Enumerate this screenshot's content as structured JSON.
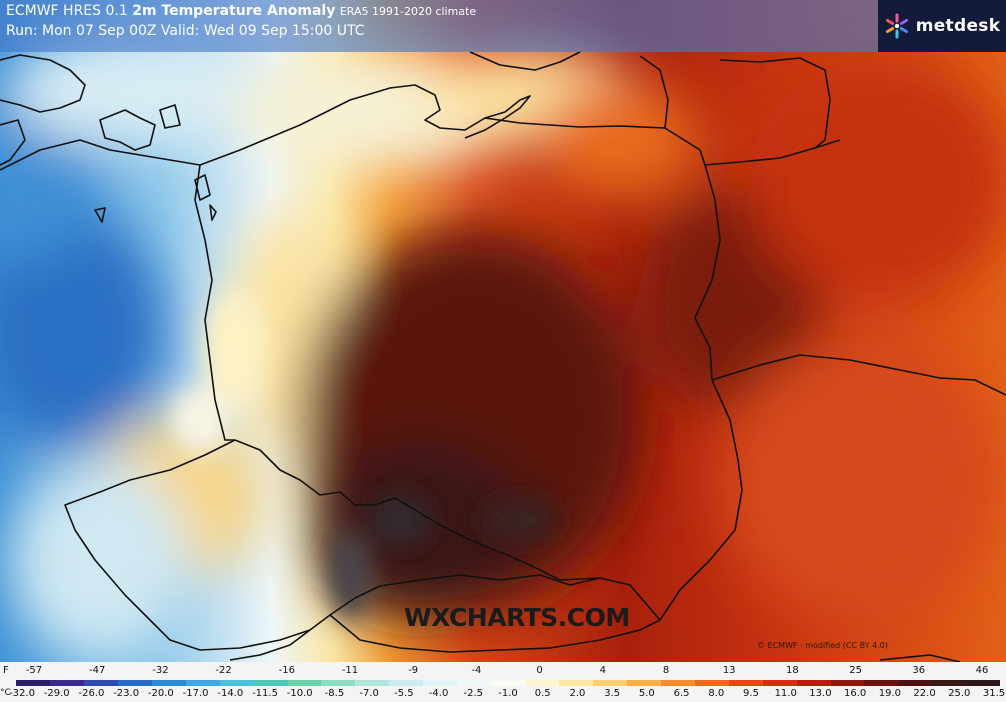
{
  "header": {
    "model": "ECMWF HRES 0.1",
    "product": "2m Temperature Anomaly",
    "climate": "ERA5 1991-2020 climate",
    "run": "Run: Mon 07 Sep 00Z Valid: Wed 09 Sep 15:00 UTC"
  },
  "brand": {
    "name": "metdesk",
    "logo_icon": "sunburst-icon"
  },
  "watermark": "WXCHARTS.COM",
  "credit": "© ECMWF · modified (CC BY 4.0)",
  "legend": {
    "f_unit": "F",
    "c_unit": "°C",
    "f_ticks": [
      "-57",
      "-47",
      "-32",
      "-22",
      "-16",
      "-11",
      "-9",
      "-4",
      "0",
      "4",
      "8",
      "13",
      "18",
      "25",
      "36",
      "46"
    ],
    "c_ticks": [
      "-32.0",
      "-29.0",
      "-26.0",
      "-23.0",
      "-20.0",
      "-17.0",
      "-14.0",
      "-11.5",
      "-10.0",
      "-8.5",
      "-7.0",
      "-5.5",
      "-4.0",
      "-2.5",
      "-1.0",
      "0.5",
      "2.0",
      "3.5",
      "5.0",
      "6.5",
      "8.0",
      "9.5",
      "11.0",
      "13.0",
      "16.0",
      "19.0",
      "22.0",
      "25.0",
      "31.5"
    ],
    "colors": [
      "#2e1f6b",
      "#3b2a8c",
      "#2f4bb0",
      "#2a6bc8",
      "#2d8ad8",
      "#40a8e0",
      "#4ec0d8",
      "#52c8b8",
      "#6ad0a8",
      "#8fdcc0",
      "#b2e6dc",
      "#cdeef0",
      "#e2f4f6",
      "#f0f8f8",
      "#fbfbf5",
      "#fdf4d0",
      "#fde6a0",
      "#fbd070",
      "#f8b048",
      "#f38c2c",
      "#ec6a1c",
      "#e04a14",
      "#cc3210",
      "#b0220c",
      "#8c1a0c",
      "#6a140e",
      "#4e1414",
      "#3a1818",
      "#2a1a1a"
    ]
  }
}
